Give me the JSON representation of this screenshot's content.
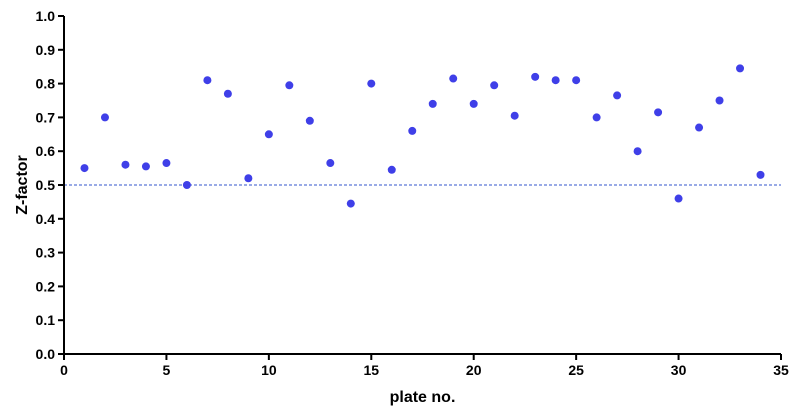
{
  "chart_data": {
    "type": "scatter",
    "title": "",
    "xlabel": "plate no.",
    "ylabel": "Z-factor",
    "xlim": [
      0,
      35
    ],
    "ylim": [
      0.0,
      1.0
    ],
    "xticks": [
      0,
      5,
      10,
      15,
      20,
      25,
      30,
      35
    ],
    "yticks": [
      0.0,
      0.1,
      0.2,
      0.3,
      0.4,
      0.5,
      0.6,
      0.7,
      0.8,
      0.9,
      1.0
    ],
    "xtick_labels": [
      "0",
      "5",
      "10",
      "15",
      "20",
      "25",
      "30",
      "35"
    ],
    "ytick_labels": [
      "0.0",
      "0.1",
      "0.2",
      "0.3",
      "0.4",
      "0.5",
      "0.6",
      "0.7",
      "0.8",
      "0.9",
      "1.0"
    ],
    "grid": false,
    "legend": "none",
    "reference_line": {
      "y": 0.5,
      "style": "dashed",
      "color": "#3355cc"
    },
    "point_color": "#3f3fe8",
    "x": [
      1,
      2,
      3,
      4,
      5,
      6,
      7,
      8,
      9,
      10,
      11,
      12,
      13,
      14,
      15,
      16,
      17,
      18,
      19,
      20,
      21,
      22,
      23,
      24,
      25,
      26,
      27,
      28,
      29,
      30,
      31,
      32,
      33,
      34
    ],
    "y": [
      0.55,
      0.7,
      0.56,
      0.555,
      0.565,
      0.5,
      0.81,
      0.77,
      0.52,
      0.65,
      0.795,
      0.69,
      0.565,
      0.445,
      0.8,
      0.545,
      0.66,
      0.74,
      0.815,
      0.74,
      0.795,
      0.705,
      0.82,
      0.81,
      0.81,
      0.7,
      0.765,
      0.6,
      0.715,
      0.46,
      0.67,
      0.75,
      0.845,
      0.53
    ]
  }
}
